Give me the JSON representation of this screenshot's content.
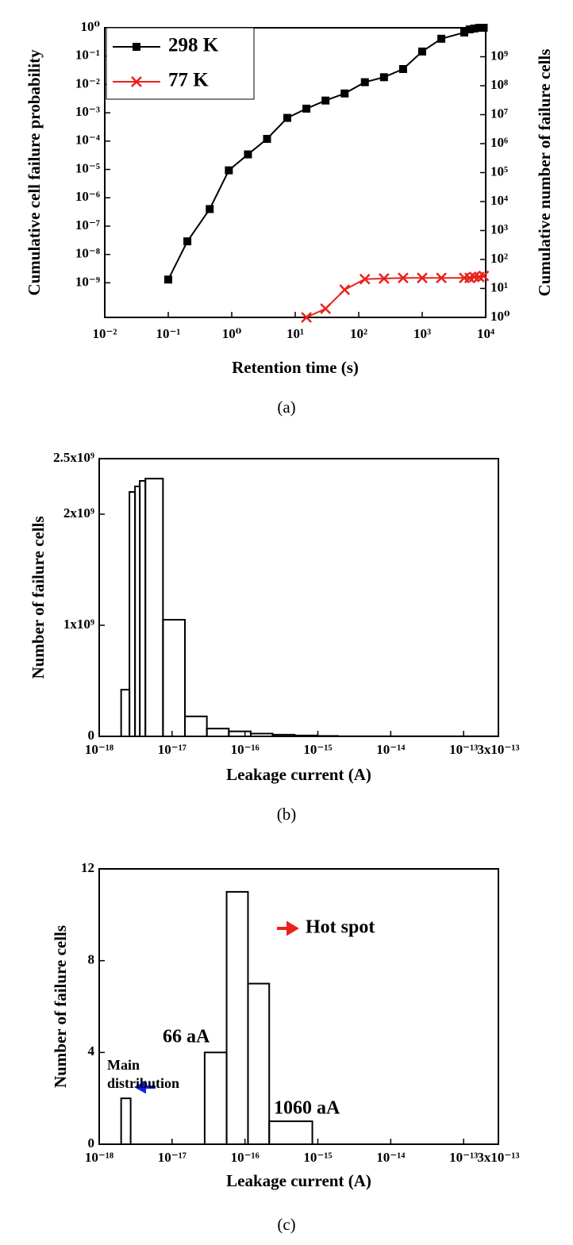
{
  "chart_data": [
    {
      "type": "line",
      "caption": "(a)",
      "xlabel": "Retention time (s)",
      "ylabel": "Cumulative cell failure probability",
      "y2label": "Cumulative number of failure cells",
      "xscale": "log",
      "yscale": "log",
      "y2scale": "log",
      "xlim": [
        0.01,
        10000
      ],
      "ylim": [
        6e-11,
        1
      ],
      "y2lim": [
        1,
        10000000000
      ],
      "xticks": [
        {
          "value": 0.01,
          "label": "10⁻²"
        },
        {
          "value": 0.1,
          "label": "10⁻¹"
        },
        {
          "value": 1,
          "label": "10⁰"
        },
        {
          "value": 10,
          "label": "10¹"
        },
        {
          "value": 100,
          "label": "10²"
        },
        {
          "value": 1000,
          "label": "10³"
        },
        {
          "value": 10000,
          "label": "10⁴"
        }
      ],
      "yticks": [
        {
          "value": 1,
          "label": "10⁰"
        },
        {
          "value": 0.1,
          "label": "10⁻¹"
        },
        {
          "value": 0.01,
          "label": "10⁻²"
        },
        {
          "value": 0.001,
          "label": "10⁻³"
        },
        {
          "value": 0.0001,
          "label": "10⁻⁴"
        },
        {
          "value": 1e-05,
          "label": "10⁻⁵"
        },
        {
          "value": 1e-06,
          "label": "10⁻⁶"
        },
        {
          "value": 1e-07,
          "label": "10⁻⁷"
        },
        {
          "value": 1e-08,
          "label": "10⁻⁸"
        },
        {
          "value": 1e-09,
          "label": "10⁻⁹"
        }
      ],
      "y2ticks": [
        {
          "value": 1,
          "label": "10⁰"
        },
        {
          "value": 10,
          "label": "10¹"
        },
        {
          "value": 100,
          "label": "10²"
        },
        {
          "value": 1000,
          "label": "10³"
        },
        {
          "value": 10000,
          "label": "10⁴"
        },
        {
          "value": 100000,
          "label": "10⁵"
        },
        {
          "value": 1000000,
          "label": "10⁶"
        },
        {
          "value": 10000000,
          "label": "10⁷"
        },
        {
          "value": 100000000,
          "label": "10⁸"
        },
        {
          "value": 1000000000,
          "label": "10⁹"
        }
      ],
      "legend": "upper left",
      "series": [
        {
          "name": "298 K",
          "color": "#000000",
          "marker": "square",
          "x": [
            0.1,
            0.2,
            0.45,
            0.9,
            1.8,
            3.6,
            7.5,
            15,
            30,
            60,
            125,
            250,
            500,
            1000,
            2000,
            4600,
            5600,
            6600,
            7900,
            9300
          ],
          "values": [
            1.3e-09,
            2.9e-08,
            4e-07,
            9.3e-06,
            3.4e-05,
            0.00012,
            0.00066,
            0.0014,
            0.0027,
            0.0048,
            0.012,
            0.018,
            0.035,
            0.145,
            0.41,
            0.68,
            0.88,
            0.94,
            1,
            1
          ]
        },
        {
          "name": "77 K",
          "color": "#e8221b",
          "marker": "x",
          "axis": "y2",
          "x": [
            15,
            30,
            60,
            125,
            250,
            500,
            1000,
            2000,
            4600,
            5600,
            6600,
            7900,
            9300
          ],
          "values": [
            1,
            2,
            9,
            21,
            22,
            23,
            23,
            23,
            23,
            23,
            25,
            25,
            27
          ]
        }
      ]
    },
    {
      "type": "histogram",
      "caption": "(b)",
      "xlabel": "Leakage current (A)",
      "ylabel": "Number of failure cells",
      "xscale": "log",
      "xlim": [
        1e-18,
        3e-13
      ],
      "ylim": [
        0,
        2500000000
      ],
      "color": "#000000",
      "xticks": [
        {
          "value": 1e-18,
          "label": "10⁻¹⁸"
        },
        {
          "value": 1e-17,
          "label": "10⁻¹⁷"
        },
        {
          "value": 1e-16,
          "label": "10⁻¹⁶"
        },
        {
          "value": 1e-15,
          "label": "10⁻¹⁵"
        },
        {
          "value": 1e-14,
          "label": "10⁻¹⁴"
        },
        {
          "value": 1e-13,
          "label": "10⁻¹³"
        },
        {
          "value": 3e-13,
          "label": "3x10⁻¹³"
        }
      ],
      "yticks": [
        0,
        {
          "value": 1000000000,
          "label": "1x10⁹"
        },
        {
          "value": 2000000000,
          "label": "2x10⁹"
        },
        {
          "value": 2500000000,
          "label": "2.5x10⁹"
        }
      ],
      "bins": [
        2e-18,
        2.6e-18,
        3.1e-18,
        3.6e-18,
        4.3e-18,
        7.5e-18,
        1.5e-17,
        3e-17,
        6e-17,
        1.2e-16,
        2.4e-16,
        4.8e-16,
        9.6e-16,
        1.9e-15,
        3e-13
      ],
      "values": [
        420000000,
        2200000000,
        2250000000,
        2300000000,
        2320000000,
        1050000000,
        180000000,
        70000000,
        45000000,
        25000000,
        15000000,
        8000000,
        4000000,
        1000000
      ]
    },
    {
      "type": "histogram",
      "caption": "(c)",
      "xlabel": "Leakage current (A)",
      "ylabel": "Number of failure cells",
      "xscale": "log",
      "xlim": [
        1e-18,
        3e-13
      ],
      "ylim": [
        0,
        12
      ],
      "color": "#000000",
      "xticks": [
        {
          "value": 1e-18,
          "label": "10⁻¹⁸"
        },
        {
          "value": 1e-17,
          "label": "10⁻¹⁷"
        },
        {
          "value": 1e-16,
          "label": "10⁻¹⁶"
        },
        {
          "value": 1e-15,
          "label": "10⁻¹⁵"
        },
        {
          "value": 1e-14,
          "label": "10⁻¹⁴"
        },
        {
          "value": 1e-13,
          "label": "10⁻¹³"
        },
        {
          "value": 3e-13,
          "label": "3x10⁻¹³"
        }
      ],
      "yticks": [
        0,
        4,
        8,
        12
      ],
      "bins": [
        2e-18,
        2.7e-18,
        2.8e-17,
        5.6e-17,
        1.1e-16,
        2.15e-16,
        8.4e-16,
        3e-13
      ],
      "values": [
        2,
        0,
        4,
        11,
        7,
        1,
        0
      ],
      "annotations": [
        {
          "text": "Hot spot",
          "color": "#e8221b"
        },
        {
          "text": "66 aA",
          "color": "#e8221b"
        },
        {
          "text": "1060 aA",
          "color": "#e8221b"
        },
        {
          "lines": [
            "Main",
            "distribution"
          ],
          "color": "#1a1aee"
        }
      ]
    }
  ]
}
